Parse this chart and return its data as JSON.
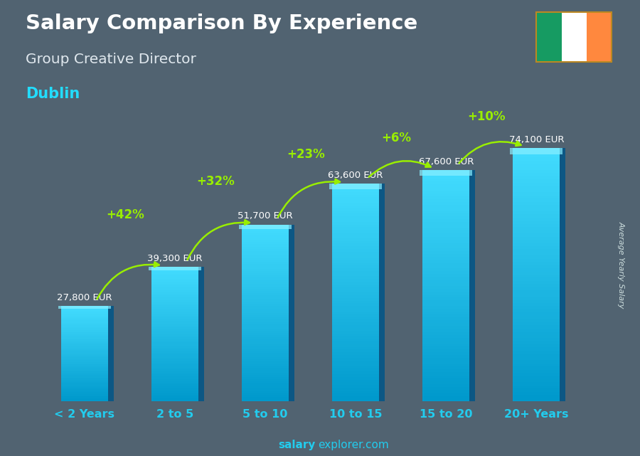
{
  "title": "Salary Comparison By Experience",
  "subtitle": "Group Creative Director",
  "city": "Dublin",
  "categories": [
    "< 2 Years",
    "2 to 5",
    "5 to 10",
    "10 to 15",
    "15 to 20",
    "20+ Years"
  ],
  "values": [
    27800,
    39300,
    51700,
    63600,
    67600,
    74100
  ],
  "value_labels": [
    "27,800 EUR",
    "39,300 EUR",
    "51,700 EUR",
    "63,600 EUR",
    "67,600 EUR",
    "74,100 EUR"
  ],
  "pct_labels": [
    "+42%",
    "+32%",
    "+23%",
    "+6%",
    "+10%"
  ],
  "bar_face_color": "#22ccee",
  "bar_side_color": "#0077aa",
  "bar_top_color": "#44ddff",
  "background_color": "#6a8090",
  "title_color": "#ffffff",
  "subtitle_color": "#e0e8ee",
  "city_color": "#22ddff",
  "value_label_color": "#ffffff",
  "pct_color": "#99ee00",
  "arrow_color": "#99ee00",
  "axis_label_color": "#22ccee",
  "ylabel": "Average Yearly Salary",
  "footer_bold": "salary",
  "footer_regular": "explorer.com",
  "footer_color": "#22ccee",
  "ylim": [
    0,
    88000
  ],
  "bar_width": 0.52,
  "flag_green": "#169b62",
  "flag_white": "#ffffff",
  "flag_orange": "#ff883e",
  "flag_border": "#bb8822"
}
